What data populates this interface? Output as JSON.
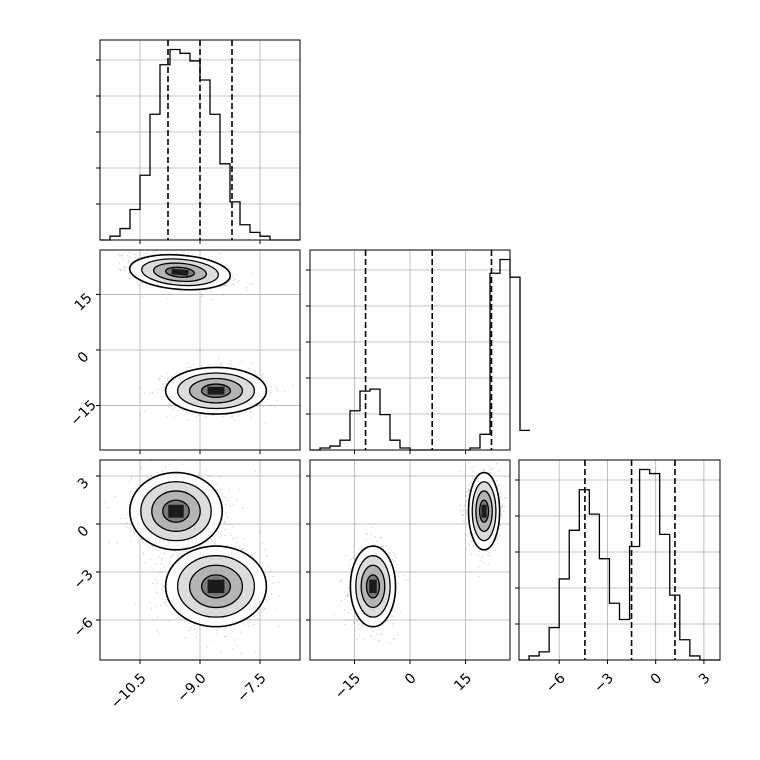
{
  "chart_data": [
    {
      "id": "hist-p0",
      "type": "histogram",
      "x_range": [
        -11.5,
        -6.5
      ],
      "quantile_lines": [
        -9.8,
        -9.0,
        -8.2
      ],
      "bin_edges_start": -11.5,
      "bin_width": 0.25,
      "counts": [
        0,
        1,
        3,
        8,
        17,
        33,
        46,
        50,
        49,
        47,
        42,
        33,
        20,
        10,
        4,
        2,
        1,
        0,
        0,
        0
      ],
      "grid": true
    },
    {
      "id": "hist-p1",
      "type": "histogram",
      "x_range": [
        -27,
        27
      ],
      "quantile_lines": [
        -12,
        6,
        22
      ],
      "bin_edges_start": -27,
      "bin_width": 2.7,
      "counts": [
        0,
        1,
        2,
        5,
        20,
        30,
        31,
        18,
        5,
        1,
        0,
        0,
        0,
        0,
        0,
        0,
        1,
        8,
        90,
        97,
        88,
        10
      ],
      "grid": true
    },
    {
      "id": "hist-p2",
      "type": "histogram",
      "x_range": [
        -8.5,
        4
      ],
      "quantile_lines": [
        -4.4,
        -1.5,
        1.2
      ],
      "bin_edges_start": -8.5,
      "bin_width": 0.625,
      "counts": [
        0,
        1,
        2,
        8,
        20,
        32,
        42,
        36,
        25,
        14,
        10,
        28,
        47,
        46,
        31,
        16,
        5,
        1,
        0,
        0
      ],
      "grid": true
    },
    {
      "id": "scatter-p0-p1",
      "type": "scatter-density",
      "x_range": [
        -11.5,
        -6.5
      ],
      "y_range": [
        -27,
        27
      ],
      "clusters": [
        {
          "cx": -9.5,
          "cy": 21,
          "sx": 0.6,
          "sy": 2.2,
          "rho": -0.45
        },
        {
          "cx": -8.6,
          "cy": -11,
          "sx": 0.6,
          "sy": 3.0,
          "rho": 0.0
        }
      ]
    },
    {
      "id": "scatter-p0-p2",
      "type": "scatter-density",
      "x_range": [
        -11.5,
        -6.5
      ],
      "y_range": [
        -8.5,
        4
      ],
      "clusters": [
        {
          "cx": -9.6,
          "cy": 0.8,
          "sx": 0.55,
          "sy": 1.15,
          "rho": 0.0
        },
        {
          "cx": -8.6,
          "cy": -3.9,
          "sx": 0.6,
          "sy": 1.2,
          "rho": 0.0
        }
      ]
    },
    {
      "id": "scatter-p1-p2",
      "type": "scatter-density",
      "x_range": [
        -27,
        27
      ],
      "y_range": [
        -8.5,
        4
      ],
      "clusters": [
        {
          "cx": -10,
          "cy": -3.9,
          "sx": 2.9,
          "sy": 1.2,
          "rho": 0.0
        },
        {
          "cx": 20,
          "cy": 0.8,
          "sx": 2.0,
          "sy": 1.15,
          "rho": 0.0
        }
      ]
    }
  ],
  "axes": {
    "p0_ticks": [
      "−10.5",
      "−9.0",
      "−7.5"
    ],
    "p0_tick_values": [
      -10.5,
      -9.0,
      -7.5
    ],
    "p1_ticks": [
      "−15",
      "0",
      "15"
    ],
    "p1_tick_values": [
      -15,
      0,
      15
    ],
    "p2_ticks": [
      "−6",
      "−3",
      "0",
      "3"
    ],
    "p2_tick_values": [
      -6,
      -3,
      0,
      3
    ]
  },
  "colors": {
    "line": "#000000",
    "grid": "#b0b0b0",
    "axes": "#000000"
  }
}
